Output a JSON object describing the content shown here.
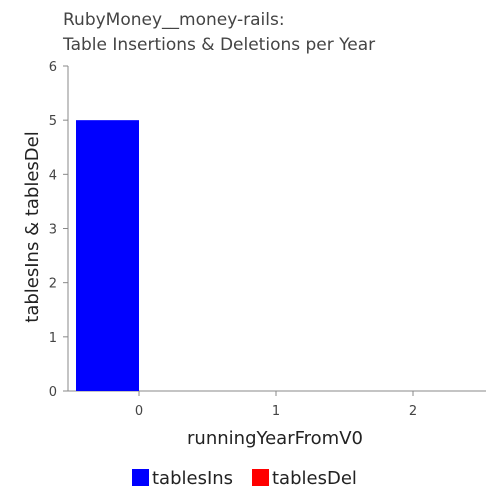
{
  "chart_data": {
    "type": "bar",
    "title": "RubyMoney__money-rails:",
    "subtitle": "Table Insertions & Deletions per Year",
    "xlabel": "runningYearFromV0",
    "ylabel": "tablesIns & tablesDel",
    "categories": [
      "0",
      "1",
      "2"
    ],
    "ylim": [
      0,
      6
    ],
    "yticks": [
      "0",
      "1",
      "2",
      "3",
      "4",
      "5",
      "6"
    ],
    "series": [
      {
        "name": "tablesIns",
        "color": "#0000ff",
        "values": [
          5,
          0,
          0
        ]
      },
      {
        "name": "tablesDel",
        "color": "#ff0000",
        "values": [
          0,
          0,
          0
        ]
      }
    ],
    "grid": false,
    "legend_position": "bottom"
  }
}
